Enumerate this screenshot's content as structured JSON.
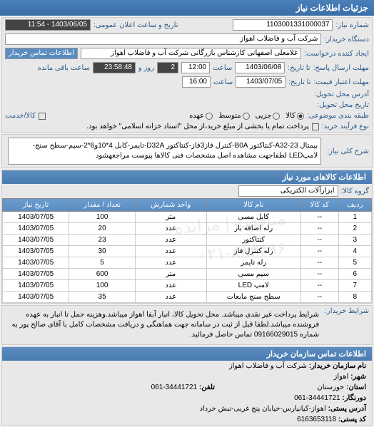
{
  "header": {
    "title": "جزئیات اطلاعات نیاز"
  },
  "info": {
    "number_label": "شماره نیاز:",
    "number": "1103001331000037",
    "date_label": "تاریخ و ساعت اعلان عمومی:",
    "date": "1403/06/05 - 11:54",
    "buyer_label": "دستگاه خریدار:",
    "buyer": "شرکت آب و فاضلاب اهواز",
    "requester_label": "ایجاد کننده درخواست:",
    "requester": "غلامعلی اصفهانی کارشناس بازرگانی شرکت آب و فاضلاب اهواز",
    "contact_btn": "اطلاعات تماس خریدار",
    "deadline_send_label": "مهلت ارسال پاسخ:",
    "deadline_send_until": "تا تاریخ:",
    "deadline_date": "1403/06/08",
    "time_label": "ساعت",
    "deadline_time": "12:00",
    "days": "2",
    "days_label": "روز و",
    "remaining": "23:58:48",
    "remaining_label": "ساعت باقی مانده",
    "price_label": "مهلت اعتبار قیمت:",
    "price_until": "تا تاریخ:",
    "price_date": "1403/07/05",
    "price_time": "16:00",
    "delivery_addr_label": "آدرس محل تحویل:",
    "delivery_date_label": "تاریخ محل تحویل:",
    "budget_label": "طبقه بندی موضوعی:",
    "budget_opts": [
      "کالا",
      "جزیی",
      "متوسط",
      "عهده"
    ],
    "payment_label": "نوع فرآیند خرید:",
    "payment_text": "پرداخت تمام یا بخشی از مبلغ خرید،از محل \"اسناد خزانه اسلامی\" خواهد بود.",
    "checkbox_label": "کالا/خدمت"
  },
  "desc": {
    "label": "شرح کلی نیاز:",
    "text": "بیمتال A32-23-کنتاکتور B0A-کنترل فاز3فاز-کنتاکتور D32A-تایمر-کابل 4*10و6*2-سیم-سطح سنج-لامپLED لطفاجهت مشاهده اصل مشخصات فنی کالاها پیوست مراجعهشود"
  },
  "goods": {
    "title": "اطلاعات کالاهای مورد نیاز",
    "group_label": "گروه کالا:",
    "group": "ابزارآلات الکتریکی",
    "columns": [
      "ردیف",
      "کد کالا",
      "نام کالا",
      "واحد شمارش",
      "تعداد / مقدار",
      "تاریخ نیاز"
    ],
    "rows": [
      [
        "1",
        "--",
        "کابل مسی",
        "متر",
        "100",
        "1403/07/05"
      ],
      [
        "2",
        "--",
        "رله اضافه بار",
        "عدد",
        "20",
        "1403/07/05"
      ],
      [
        "3",
        "--",
        "کنتاکتور",
        "عدد",
        "23",
        "1403/07/05"
      ],
      [
        "4",
        "--",
        "رله کنترل فاز",
        "عدد",
        "30",
        "1403/07/05"
      ],
      [
        "5",
        "--",
        "رله تایمر",
        "عدد",
        "5",
        "1403/07/05"
      ],
      [
        "6",
        "--",
        "سیم مسی",
        "متر",
        "600",
        "1403/07/05"
      ],
      [
        "7",
        "--",
        "لامپ LED",
        "عدد",
        "100",
        "1403/07/05"
      ],
      [
        "8",
        "--",
        "سطح سنج مایعات",
        "عدد",
        "35",
        "1403/07/05"
      ]
    ],
    "watermark": "۰۲۱-۸۸۳۴۹۶",
    "watermark2": "مناقصه | مزایده"
  },
  "conditions": {
    "label": "شرایط خریدار:",
    "text": "شرایط پرداخت غیر نقدی میباشد. محل تحویل کالا، انبار آبفا اهواز میباشد.وهزینه حمل تا انبار به عهده فروشنده میباشد.لطفا قبل از ثبت در سامانه جهت هماهنگی و دریافت مشخصات کامل با آقای صالح پور به شماره 09166029015 تماس حاصل فرمائید."
  },
  "contact": {
    "title": "اطلاعات تماس سازمان خریدار",
    "org_label": "نام سازمان خریدار:",
    "org": "شرکت آب و فاضلاب اهواز",
    "city_label": "شهر:",
    "city": "اهواز",
    "province_label": "استان:",
    "province": "خوزستان",
    "phone_label": "تلفن:",
    "phone": "34441721-061",
    "fax_label": "دورنگار:",
    "fax": "34441721-061",
    "addr_label": "آدرس پستی:",
    "addr": "اهواز-کیانپارس-خیابان پنج غربی-نبش خرداد",
    "post_label": "کد پستی:",
    "post": "6163653118"
  }
}
